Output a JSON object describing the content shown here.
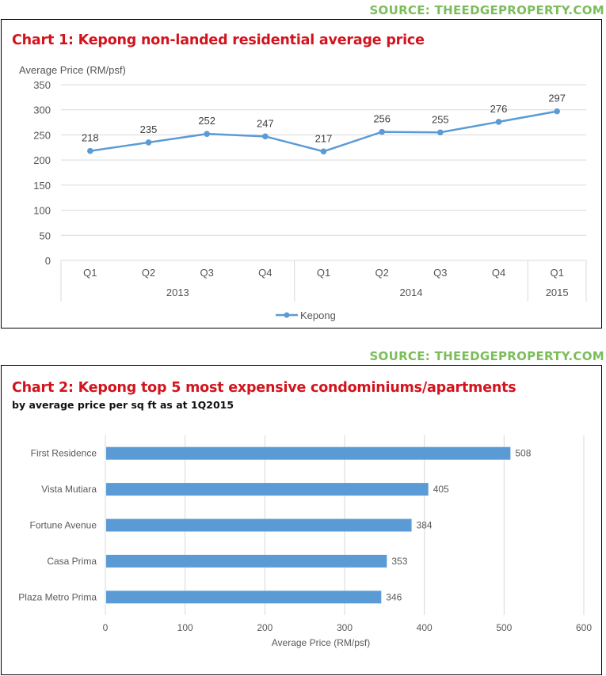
{
  "colors": {
    "accent": "#d2141e",
    "source_green": "#7cbd5b",
    "series": "#5b9bd5",
    "grid": "#d9d9d9"
  },
  "source1": "SOURCE: THEEDGEPROPERTY.COM",
  "source2": "SOURCE: THEEDGEPROPERTY.COM",
  "chart1": {
    "title": "Chart 1: Kepong non-landed residential average price",
    "legend_label": "Kepong"
  },
  "chart2": {
    "title": "Chart 2: Kepong top 5 most expensive condominiums/apartments",
    "subtitle": "by average price per sq ft as at 1Q2015"
  },
  "chart_data": [
    {
      "type": "line",
      "title": "Chart 1: Kepong non-landed residential average price",
      "ylabel": "Average Price (RM/psf)",
      "xlabel": "",
      "categories": [
        "Q1",
        "Q2",
        "Q3",
        "Q4",
        "Q1",
        "Q2",
        "Q3",
        "Q4",
        "Q1"
      ],
      "groups": [
        {
          "label": "2013",
          "count": 4
        },
        {
          "label": "2014",
          "count": 4
        },
        {
          "label": "2015",
          "count": 1
        }
      ],
      "series": [
        {
          "name": "Kepong",
          "values": [
            218,
            235,
            252,
            247,
            217,
            256,
            255,
            276,
            297
          ]
        }
      ],
      "ylim": [
        0,
        350
      ],
      "yticks": [
        0,
        50,
        100,
        150,
        200,
        250,
        300,
        350
      ],
      "grid": true,
      "legend": "bottom",
      "data_labels": true
    },
    {
      "type": "bar",
      "orientation": "horizontal",
      "title": "Chart 2: Kepong top 5 most expensive condominiums/apartments",
      "subtitle": "by average price per sq ft as at 1Q2015",
      "xlabel": "Average Price (RM/psf)",
      "ylabel": "",
      "categories": [
        "First Residence",
        "Vista Mutiara",
        "Fortune Avenue",
        "Casa Prima",
        "Plaza Metro Prima"
      ],
      "values": [
        508,
        405,
        384,
        353,
        346
      ],
      "xlim": [
        0,
        600
      ],
      "xticks": [
        0,
        100,
        200,
        300,
        400,
        500,
        600
      ],
      "grid": true,
      "data_labels": true
    }
  ]
}
